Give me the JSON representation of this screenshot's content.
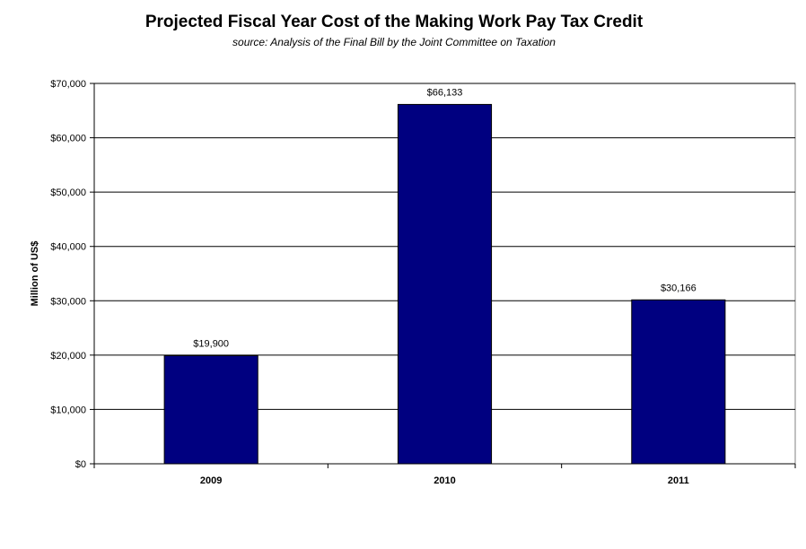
{
  "chart_data": {
    "type": "bar",
    "title": "Projected Fiscal Year Cost of the Making Work Pay Tax Credit",
    "subtitle": "source: Analysis of the Final Bill by the Joint Committee on Taxation",
    "xlabel": "",
    "ylabel": "Million of US$",
    "categories": [
      "2009",
      "2010",
      "2011"
    ],
    "values": [
      19900,
      66133,
      30166
    ],
    "data_labels": [
      "$19,900",
      "$66,133",
      "$30,166"
    ],
    "ylim": [
      0,
      70000
    ],
    "yticks": [
      0,
      10000,
      20000,
      30000,
      40000,
      50000,
      60000,
      70000
    ],
    "ytick_labels": [
      "$0",
      "$10,000",
      "$20,000",
      "$30,000",
      "$40,000",
      "$50,000",
      "$60,000",
      "$70,000"
    ],
    "grid": true,
    "legend": "none",
    "colors": {
      "bar": "#000080",
      "bar_outline": "#000000",
      "grid": "#000000"
    }
  }
}
